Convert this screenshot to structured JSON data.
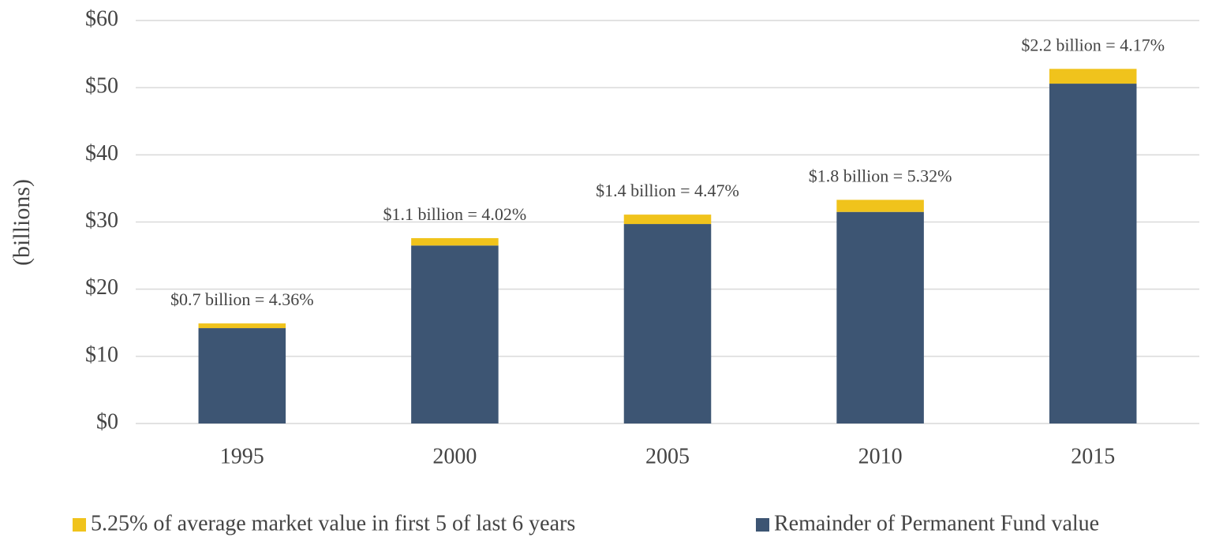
{
  "chart_data": {
    "type": "stacked_bar",
    "ylabel": "(billions)",
    "categories": [
      "1995",
      "2000",
      "2005",
      "2010",
      "2015"
    ],
    "series": [
      {
        "name": "5.25% of average market value in first 5 of last 6 years",
        "color": "#f0c31c",
        "values": [
          0.7,
          1.1,
          1.4,
          1.8,
          2.2
        ],
        "value_labels": [
          "$0.7 billion = 4.36%",
          "$1.1 billion = 4.02%",
          "$1.4 billion = 4.47%",
          "$1.8 billion = 5.32%",
          "$2.2 billion = 4.17%"
        ]
      },
      {
        "name": "Remainder of Permanent Fund value",
        "color": "#3d5573",
        "values": [
          14.2,
          26.5,
          29.7,
          31.5,
          50.6
        ]
      }
    ],
    "ylim": [
      0,
      60
    ],
    "yticks": [
      {
        "value": 0,
        "label": "$0"
      },
      {
        "value": 10,
        "label": "$10"
      },
      {
        "value": 20,
        "label": "$20"
      },
      {
        "value": 30,
        "label": "$30"
      },
      {
        "value": 40,
        "label": "$40"
      },
      {
        "value": 50,
        "label": "$50"
      },
      {
        "value": 60,
        "label": "$60"
      }
    ],
    "grid": true,
    "legend": "bottom"
  }
}
